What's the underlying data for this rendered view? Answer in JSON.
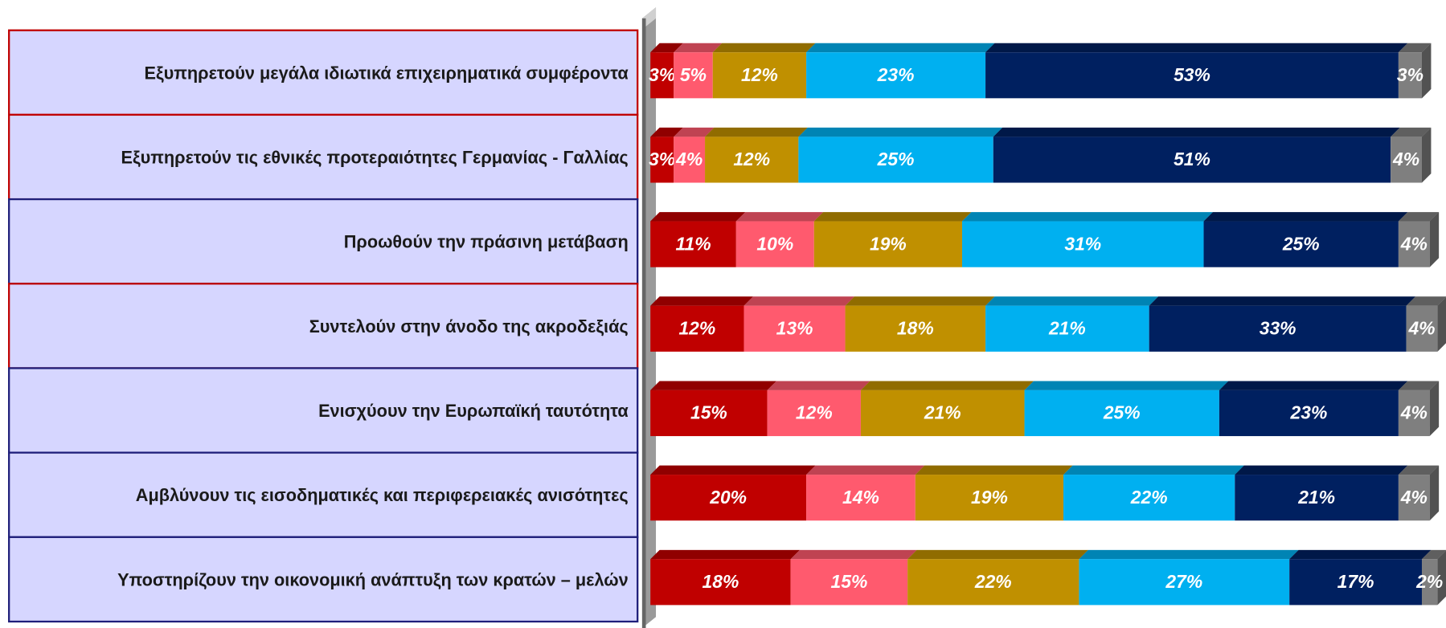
{
  "chart_data": {
    "type": "bar",
    "orientation": "horizontal",
    "stacked": true,
    "categories": [
      "Εξυπηρετούν μεγάλα ιδιωτικά επιχειρηματικά συμφέροντα",
      "Εξυπηρετούν τις εθνικές προτεραιότητες Γερμανίας - Γαλλίας",
      "Προωθούν την πράσινη μετάβαση",
      "Συντελούν στην άνοδο της ακροδεξιάς",
      "Ενισχύουν την Ευρωπαϊκή ταυτότητα",
      "Αμβλύνουν τις εισοδηματικές και περιφερειακές ανισότητες",
      "Υποστηρίζουν την οικονομική ανάπτυξη των κρατών – μελών"
    ],
    "xlim": [
      0,
      100
    ],
    "series": [
      {
        "color": "#c00000",
        "values": [
          3,
          3,
          11,
          12,
          15,
          20,
          18
        ],
        "value_labels": [
          "3%",
          "3%",
          "11%",
          "12%",
          "15%",
          "20%",
          "18%"
        ]
      },
      {
        "color": "#ff5a6e",
        "values": [
          5,
          4,
          10,
          13,
          12,
          14,
          15
        ],
        "value_labels": [
          "5%",
          "4%",
          "10%",
          "13%",
          "12%",
          "14%",
          "15%"
        ]
      },
      {
        "color": "#c09000",
        "values": [
          12,
          12,
          19,
          18,
          21,
          19,
          22
        ],
        "value_labels": [
          "12%",
          "12%",
          "19%",
          "18%",
          "21%",
          "19%",
          "22%"
        ]
      },
      {
        "color": "#00b0f0",
        "values": [
          23,
          25,
          31,
          21,
          25,
          22,
          27
        ],
        "value_labels": [
          "23%",
          "25%",
          "31%",
          "21%",
          "25%",
          "22%",
          "27%"
        ]
      },
      {
        "color": "#002060",
        "values": [
          53,
          51,
          25,
          33,
          23,
          21,
          17
        ],
        "value_labels": [
          "53%",
          "51%",
          "25%",
          "33%",
          "23%",
          "21%",
          "17%"
        ]
      },
      {
        "color": "#7f7f7f",
        "values": [
          3,
          4,
          4,
          4,
          4,
          4,
          2
        ],
        "value_labels": [
          "3%",
          "4%",
          "4%",
          "4%",
          "4%",
          "4%",
          "2%"
        ]
      }
    ]
  }
}
